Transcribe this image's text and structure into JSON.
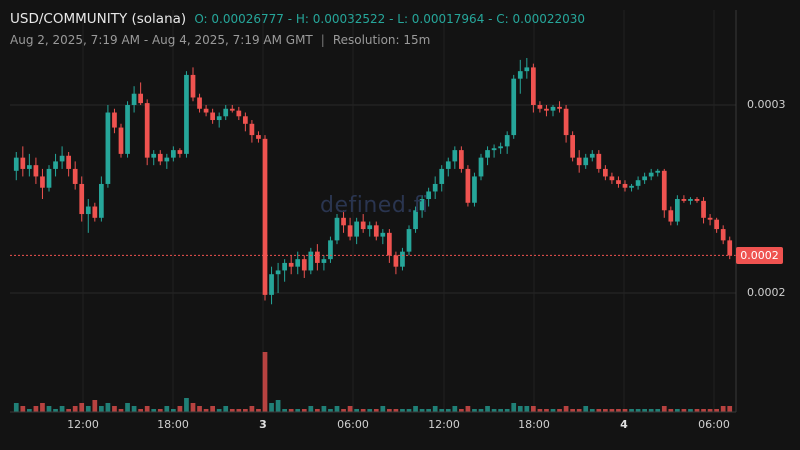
{
  "header": {
    "title": "USD/COMMUNITY (solana)",
    "ohlc": "O: 0.00026777 - H: 0.00032522 - L: 0.00017964 - C: 0.00022030",
    "range": "Aug 2, 2025, 7:19 AM - Aug 4, 2025, 7:19 AM GMT",
    "separator": "|",
    "resolution": "Resolution: 15m"
  },
  "watermark": "defined.fi",
  "colors": {
    "up": "#26a69a",
    "down": "#ef5350",
    "background": "#131313",
    "grid": "#2a2a2a"
  },
  "chart_data": {
    "type": "candlestick",
    "y_axis": {
      "ticks": [
        {
          "value": 0.0003,
          "label": "0.0003"
        },
        {
          "value": 0.0002,
          "label": "0.0002"
        }
      ],
      "last_price": {
        "value": 0.00022,
        "label": "0.0002"
      }
    },
    "x_axis": {
      "ticks": [
        {
          "label": "12:00",
          "bold": false
        },
        {
          "label": "18:00",
          "bold": false
        },
        {
          "label": "3",
          "bold": true
        },
        {
          "label": "06:00",
          "bold": false
        },
        {
          "label": "12:00",
          "bold": false
        },
        {
          "label": "18:00",
          "bold": false
        },
        {
          "label": "4",
          "bold": true
        },
        {
          "label": "06:00",
          "bold": false
        }
      ]
    },
    "candles": [
      [
        0.000265,
        0.000275,
        0.00026,
        0.000272,
        3
      ],
      [
        0.000272,
        0.000278,
        0.000262,
        0.000266,
        2
      ],
      [
        0.000266,
        0.000274,
        0.000262,
        0.000268,
        1
      ],
      [
        0.000268,
        0.000272,
        0.000258,
        0.000262,
        2
      ],
      [
        0.000262,
        0.000266,
        0.00025,
        0.000256,
        3
      ],
      [
        0.000256,
        0.000268,
        0.000254,
        0.000266,
        2
      ],
      [
        0.000266,
        0.000274,
        0.000262,
        0.00027,
        1
      ],
      [
        0.00027,
        0.000278,
        0.000266,
        0.000273,
        2
      ],
      [
        0.000273,
        0.000275,
        0.000262,
        0.000266,
        1
      ],
      [
        0.000266,
        0.00027,
        0.000255,
        0.000258,
        2
      ],
      [
        0.000258,
        0.000262,
        0.000238,
        0.000242,
        3
      ],
      [
        0.000242,
        0.00025,
        0.000232,
        0.000246,
        2
      ],
      [
        0.000246,
        0.000248,
        0.000238,
        0.00024,
        4
      ],
      [
        0.00024,
        0.000262,
        0.000238,
        0.000258,
        2
      ],
      [
        0.000258,
        0.0003,
        0.000256,
        0.000296,
        3
      ],
      [
        0.000296,
        0.000298,
        0.000285,
        0.000288,
        2
      ],
      [
        0.000288,
        0.00029,
        0.000272,
        0.000274,
        1
      ],
      [
        0.000274,
        0.000302,
        0.000272,
        0.0003,
        3
      ],
      [
        0.0003,
        0.00031,
        0.000296,
        0.000306,
        2
      ],
      [
        0.000306,
        0.000312,
        0.0003,
        0.000301,
        1
      ],
      [
        0.000301,
        0.000303,
        0.000268,
        0.000272,
        2
      ],
      [
        0.000272,
        0.000276,
        0.000268,
        0.000274,
        1
      ],
      [
        0.000274,
        0.000276,
        0.000268,
        0.00027,
        1
      ],
      [
        0.00027,
        0.000274,
        0.000266,
        0.000272,
        2
      ],
      [
        0.000272,
        0.000278,
        0.00027,
        0.000276,
        1
      ],
      [
        0.000276,
        0.000277,
        0.000272,
        0.000274,
        2
      ],
      [
        0.000274,
        0.000318,
        0.000272,
        0.000316,
        5
      ],
      [
        0.000316,
        0.00032,
        0.000302,
        0.000304,
        3
      ],
      [
        0.000304,
        0.000306,
        0.000296,
        0.000298,
        2
      ],
      [
        0.000298,
        0.0003,
        0.000294,
        0.000296,
        1
      ],
      [
        0.000296,
        0.000298,
        0.00029,
        0.000292,
        2
      ],
      [
        0.000292,
        0.000296,
        0.000288,
        0.000294,
        1
      ],
      [
        0.000294,
        0.0003,
        0.000292,
        0.000298,
        2
      ],
      [
        0.000298,
        0.0003,
        0.000296,
        0.000297,
        1
      ],
      [
        0.000297,
        0.000299,
        0.000292,
        0.000294,
        1
      ],
      [
        0.000294,
        0.000296,
        0.000286,
        0.00029,
        1
      ],
      [
        0.00029,
        0.000292,
        0.00028,
        0.000284,
        2
      ],
      [
        0.000284,
        0.000286,
        0.00028,
        0.000282,
        1
      ],
      [
        0.000282,
        0.000284,
        0.000196,
        0.000199,
        6
      ],
      [
        0.000199,
        0.000214,
        0.000194,
        0.00021,
        3
      ],
      [
        0.00021,
        0.000216,
        0.0002,
        0.000212,
        4
      ],
      [
        0.000212,
        0.000218,
        0.000206,
        0.000216,
        1
      ],
      [
        0.000216,
        0.00022,
        0.00021,
        0.000214,
        1
      ],
      [
        0.000214,
        0.000222,
        0.00021,
        0.000218,
        1
      ],
      [
        0.000218,
        0.00022,
        0.000208,
        0.000212,
        1
      ],
      [
        0.000212,
        0.000224,
        0.00021,
        0.000222,
        2
      ],
      [
        0.000222,
        0.000226,
        0.000212,
        0.000216,
        1
      ],
      [
        0.000216,
        0.00022,
        0.000212,
        0.000218,
        2
      ],
      [
        0.000218,
        0.00023,
        0.000216,
        0.000228,
        1
      ],
      [
        0.000228,
        0.000242,
        0.000226,
        0.00024,
        2
      ],
      [
        0.00024,
        0.000244,
        0.000232,
        0.000236,
        1
      ],
      [
        0.000236,
        0.00024,
        0.000228,
        0.00023,
        2
      ],
      [
        0.00023,
        0.00024,
        0.000226,
        0.000238,
        1
      ],
      [
        0.000238,
        0.000242,
        0.000232,
        0.000234,
        1
      ],
      [
        0.000234,
        0.000238,
        0.00023,
        0.000236,
        1
      ],
      [
        0.000236,
        0.000238,
        0.000228,
        0.00023,
        1
      ],
      [
        0.00023,
        0.000234,
        0.000226,
        0.000232,
        2
      ],
      [
        0.000232,
        0.000234,
        0.000216,
        0.00022,
        1
      ],
      [
        0.00022,
        0.000222,
        0.00021,
        0.000214,
        1
      ],
      [
        0.000214,
        0.000224,
        0.000212,
        0.000222,
        1
      ],
      [
        0.000222,
        0.000236,
        0.00022,
        0.000234,
        1
      ],
      [
        0.000234,
        0.000246,
        0.000232,
        0.000244,
        2
      ],
      [
        0.000244,
        0.000252,
        0.00024,
        0.00025,
        1
      ],
      [
        0.00025,
        0.000256,
        0.000246,
        0.000254,
        1
      ],
      [
        0.000254,
        0.000262,
        0.00025,
        0.000258,
        2
      ],
      [
        0.000258,
        0.000268,
        0.000254,
        0.000266,
        1
      ],
      [
        0.000266,
        0.000272,
        0.000262,
        0.00027,
        1
      ],
      [
        0.00027,
        0.000278,
        0.000266,
        0.000276,
        2
      ],
      [
        0.000276,
        0.000278,
        0.000264,
        0.000266,
        1
      ],
      [
        0.000266,
        0.000268,
        0.000246,
        0.000248,
        2
      ],
      [
        0.000248,
        0.000264,
        0.000246,
        0.000262,
        1
      ],
      [
        0.000262,
        0.000274,
        0.00026,
        0.000272,
        1
      ],
      [
        0.000272,
        0.000278,
        0.000268,
        0.000276,
        2
      ],
      [
        0.000276,
        0.000279,
        0.000272,
        0.000277,
        1
      ],
      [
        0.000277,
        0.00028,
        0.000274,
        0.000278,
        1
      ],
      [
        0.000278,
        0.000286,
        0.000274,
        0.000284,
        1
      ],
      [
        0.000284,
        0.000316,
        0.000282,
        0.000314,
        3
      ],
      [
        0.000314,
        0.000324,
        0.000306,
        0.000318,
        2
      ],
      [
        0.000318,
        0.000325,
        0.000314,
        0.00032,
        2
      ],
      [
        0.00032,
        0.000322,
        0.000296,
        0.0003,
        2
      ],
      [
        0.0003,
        0.000302,
        0.000296,
        0.000298,
        1
      ],
      [
        0.000298,
        0.0003,
        0.000294,
        0.000297,
        1
      ],
      [
        0.000297,
        0.0003,
        0.000294,
        0.000299,
        1
      ],
      [
        0.000299,
        0.000302,
        0.000296,
        0.000298,
        1
      ],
      [
        0.000298,
        0.0003,
        0.00028,
        0.000284,
        2
      ],
      [
        0.000284,
        0.000286,
        0.00027,
        0.000272,
        1
      ],
      [
        0.000272,
        0.000276,
        0.000264,
        0.000268,
        1
      ],
      [
        0.000268,
        0.000274,
        0.000266,
        0.000272,
        2
      ],
      [
        0.000272,
        0.000276,
        0.00027,
        0.000274,
        1
      ],
      [
        0.000274,
        0.000276,
        0.000264,
        0.000266,
        1
      ],
      [
        0.000266,
        0.000268,
        0.00026,
        0.000262,
        1
      ],
      [
        0.000262,
        0.000264,
        0.000258,
        0.00026,
        1
      ],
      [
        0.00026,
        0.000262,
        0.000256,
        0.000258,
        1
      ],
      [
        0.000258,
        0.00026,
        0.000254,
        0.000256,
        1
      ],
      [
        0.000256,
        0.000258,
        0.000254,
        0.000257,
        1
      ],
      [
        0.000257,
        0.000262,
        0.000255,
        0.00026,
        1
      ],
      [
        0.00026,
        0.000264,
        0.000258,
        0.000262,
        1
      ],
      [
        0.000262,
        0.000266,
        0.00026,
        0.000264,
        1
      ],
      [
        0.000264,
        0.000266,
        0.000262,
        0.000265,
        1
      ],
      [
        0.000265,
        0.000266,
        0.00024,
        0.000244,
        2
      ],
      [
        0.000244,
        0.000246,
        0.000236,
        0.000238,
        1
      ],
      [
        0.000238,
        0.000252,
        0.000236,
        0.00025,
        1
      ],
      [
        0.00025,
        0.000252,
        0.000248,
        0.000249,
        1
      ],
      [
        0.000249,
        0.000251,
        0.000247,
        0.00025,
        1
      ],
      [
        0.00025,
        0.000251,
        0.000248,
        0.000249,
        1
      ],
      [
        0.000249,
        0.000251,
        0.000237,
        0.00024,
        1
      ],
      [
        0.00024,
        0.000242,
        0.000236,
        0.000239,
        1
      ],
      [
        0.000239,
        0.00024,
        0.000232,
        0.000234,
        1
      ],
      [
        0.000234,
        0.000236,
        0.000226,
        0.000228,
        2
      ],
      [
        0.000228,
        0.00023,
        0.000218,
        0.00022,
        2
      ]
    ]
  }
}
